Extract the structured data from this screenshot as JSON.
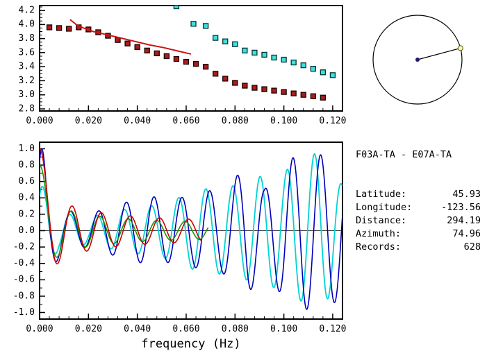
{
  "page": {
    "background": "#ffffff"
  },
  "info_panel": {
    "title": "F03A-TA - E07A-TA",
    "rows": [
      {
        "label": "Latitude:",
        "value": "45.93"
      },
      {
        "label": "Longitude:",
        "value": "-123.56"
      },
      {
        "label": "Distance:",
        "value": "294.19"
      },
      {
        "label": "Azimuth:",
        "value": "74.96"
      },
      {
        "label": "Records:",
        "value": "628"
      }
    ]
  },
  "azimuth_indicator": {
    "azimuth_deg": 74.96,
    "circle_color": "#000000",
    "center_dot_color": "#1a1a66",
    "endpoint_fill": "#ffff99",
    "endpoint_stroke": "#555522"
  },
  "chart_data": [
    {
      "name": "dispersion-plot",
      "type": "scatter",
      "title": "",
      "xlabel": "",
      "ylabel": "",
      "xlim": [
        0,
        0.124
      ],
      "ylim": [
        2.77,
        4.27
      ],
      "xtick_labels": [
        "0.000",
        "0.020",
        "0.040",
        "0.060",
        "0.080",
        "0.100",
        "0.120"
      ],
      "ytick_labels": [
        "2.8",
        "3.0",
        "3.2",
        "3.4",
        "3.6",
        "3.8",
        "4.0",
        "4.2"
      ],
      "xminor": 0.004,
      "yminor": 0.05,
      "grid": false,
      "series": [
        {
          "name": "station-pair-dispersion",
          "type": "scatter",
          "marker": "square",
          "marker_size": 7,
          "color": "#aa1c1c",
          "edge": "#1a0000",
          "x": [
            0.004,
            0.008,
            0.012,
            0.016,
            0.02,
            0.024,
            0.028,
            0.032,
            0.036,
            0.04,
            0.044,
            0.048,
            0.052,
            0.056,
            0.06,
            0.064,
            0.068,
            0.072,
            0.076,
            0.08,
            0.084,
            0.088,
            0.092,
            0.096,
            0.1,
            0.104,
            0.108,
            0.112,
            0.116
          ],
          "y": [
            3.96,
            3.95,
            3.94,
            3.96,
            3.93,
            3.89,
            3.84,
            3.78,
            3.73,
            3.68,
            3.63,
            3.59,
            3.55,
            3.51,
            3.47,
            3.44,
            3.4,
            3.3,
            3.23,
            3.17,
            3.13,
            3.1,
            3.08,
            3.06,
            3.04,
            3.02,
            3.0,
            2.98,
            2.96
          ]
        },
        {
          "name": "reference-dispersion",
          "type": "scatter",
          "marker": "square",
          "marker_size": 7,
          "color": "#3fe0e0",
          "edge": "#003535",
          "x": [
            0.056,
            0.063,
            0.068,
            0.072,
            0.076,
            0.08,
            0.084,
            0.088,
            0.092,
            0.096,
            0.1,
            0.104,
            0.108,
            0.112,
            0.116,
            0.12
          ],
          "y": [
            4.26,
            4.01,
            3.98,
            3.81,
            3.76,
            3.72,
            3.63,
            3.6,
            3.57,
            3.53,
            3.5,
            3.46,
            3.42,
            3.37,
            3.32,
            3.28
          ]
        },
        {
          "name": "smoothed-dispersion-curve",
          "type": "line",
          "color": "#cc1414",
          "width": 2,
          "x": [
            0.0125,
            0.015,
            0.018,
            0.022,
            0.027,
            0.033,
            0.039,
            0.045,
            0.051,
            0.057,
            0.062
          ],
          "y": [
            4.07,
            4.0,
            3.95,
            3.9,
            3.86,
            3.81,
            3.76,
            3.71,
            3.67,
            3.62,
            3.58
          ]
        }
      ]
    },
    {
      "name": "cross-spectrum-plot",
      "type": "line",
      "title": "",
      "xlabel": "frequency (Hz)",
      "ylabel": "",
      "xlim": [
        0,
        0.124
      ],
      "ylim": [
        -1.08,
        1.08
      ],
      "xtick_labels": [
        "0.000",
        "0.020",
        "0.040",
        "0.060",
        "0.080",
        "0.100",
        "0.120"
      ],
      "ytick_labels": [
        "-1.0",
        "-0.8",
        "-0.6",
        "-0.4",
        "-0.2",
        "0.0",
        "0.2",
        "0.4",
        "0.6",
        "0.8",
        "1.0"
      ],
      "xminor": 0.004,
      "yminor": 0.1,
      "grid": false,
      "zero_line": true,
      "series": [
        {
          "name": "observed-spectrum-cyan",
          "model": "cosine",
          "color": "#00d4d4",
          "width": 1.8,
          "travel_time": 90,
          "phase_deg": -45,
          "fmin": 0,
          "fmax": 0.124,
          "envelope": [
            [
              0,
              0.6
            ],
            [
              0.008,
              0.22
            ],
            [
              0.02,
              0.16
            ],
            [
              0.035,
              0.26
            ],
            [
              0.05,
              0.32
            ],
            [
              0.065,
              0.5
            ],
            [
              0.08,
              0.55
            ],
            [
              0.09,
              0.66
            ],
            [
              0.1,
              0.72
            ],
            [
              0.108,
              0.88
            ],
            [
              0.115,
              0.97
            ],
            [
              0.124,
              0.55
            ]
          ]
        },
        {
          "name": "observed-spectrum-blue",
          "model": "cosine",
          "color": "#0000bb",
          "width": 1.6,
          "travel_time": 88,
          "phase_deg": -45,
          "fmin": 0,
          "fmax": 0.124,
          "envelope": [
            [
              0,
              1.2
            ],
            [
              0.004,
              0.5
            ],
            [
              0.01,
              0.25
            ],
            [
              0.02,
              0.2
            ],
            [
              0.032,
              0.32
            ],
            [
              0.045,
              0.42
            ],
            [
              0.055,
              0.38
            ],
            [
              0.065,
              0.46
            ],
            [
              0.075,
              0.52
            ],
            [
              0.085,
              0.78
            ],
            [
              0.092,
              0.5
            ],
            [
              0.1,
              0.82
            ],
            [
              0.108,
              0.97
            ],
            [
              0.116,
              0.92
            ],
            [
              0.124,
              0.85
            ]
          ]
        },
        {
          "name": "synthetic-bessel-green",
          "model": "bessel",
          "color": "#1f9400",
          "width": 1.6,
          "travel_time": 86,
          "scale": 0.8,
          "fmin": 0,
          "fmax": 0.069
        },
        {
          "name": "synthetic-bessel-red",
          "model": "bessel",
          "color": "#cc0000",
          "width": 1.6,
          "travel_time": 84,
          "scale": 1.0,
          "fmin": 0,
          "fmax": 0.066
        }
      ]
    }
  ]
}
